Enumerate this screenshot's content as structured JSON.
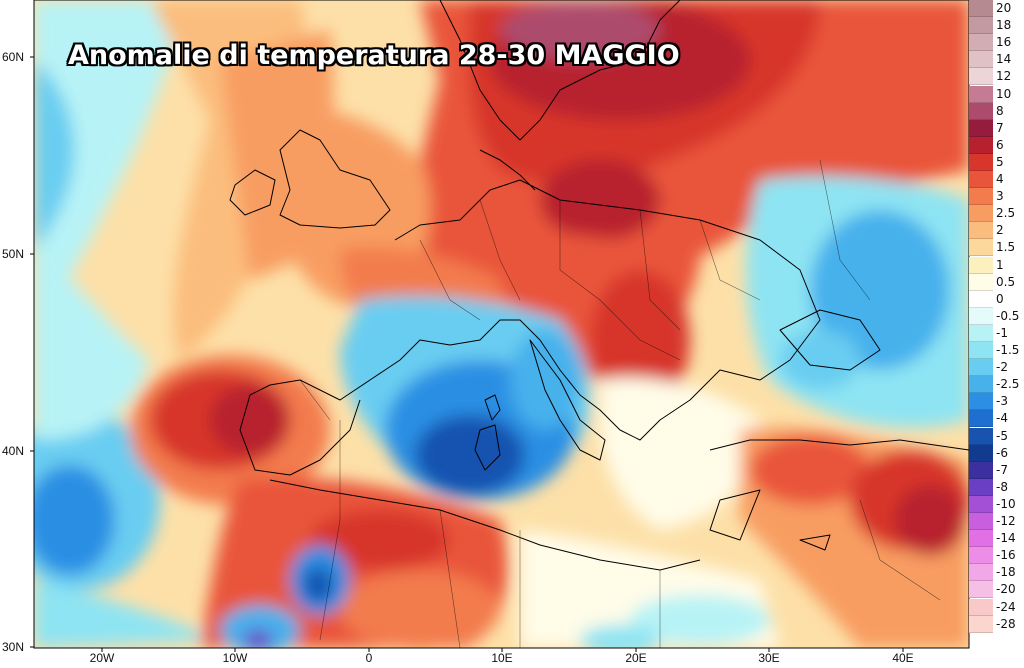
{
  "title": "Anomalie di temperatura 28-30 MAGGIO",
  "lat_labels": [
    "60N",
    "50N",
    "40N",
    "30N"
  ],
  "lon_labels": [
    "20W",
    "10W",
    "0",
    "10E",
    "20E",
    "30E",
    "40E"
  ],
  "legend": [
    {
      "label": "20",
      "color": "#b58a91"
    },
    {
      "label": "18",
      "color": "#c49aa2"
    },
    {
      "label": "16",
      "color": "#d2adb4"
    },
    {
      "label": "14",
      "color": "#dfc1c6"
    },
    {
      "label": "12",
      "color": "#ebd5d8"
    },
    {
      "label": "10",
      "color": "#c47b93"
    },
    {
      "label": "8",
      "color": "#ad4b6d"
    },
    {
      "label": "7",
      "color": "#951c3c"
    },
    {
      "label": "6",
      "color": "#b7202f"
    },
    {
      "label": "5",
      "color": "#d7362c"
    },
    {
      "label": "4",
      "color": "#e9553a"
    },
    {
      "label": "3",
      "color": "#f37c4e"
    },
    {
      "label": "2.5",
      "color": "#f89d62"
    },
    {
      "label": "2",
      "color": "#fbbd7d"
    },
    {
      "label": "1.5",
      "color": "#fdd89c"
    },
    {
      "label": "1",
      "color": "#fdf0bf"
    },
    {
      "label": "0.5",
      "color": "#fffce8"
    },
    {
      "label": "0",
      "color": "#ffffff"
    },
    {
      "label": "-0.5",
      "color": "#e3fbfb"
    },
    {
      "label": "-1",
      "color": "#b7f3f6"
    },
    {
      "label": "-1.5",
      "color": "#8ee4f3"
    },
    {
      "label": "-2",
      "color": "#69cdf1"
    },
    {
      "label": "-2.5",
      "color": "#47b1ec"
    },
    {
      "label": "-3",
      "color": "#2c8fe3"
    },
    {
      "label": "-4",
      "color": "#1f6fd0"
    },
    {
      "label": "-5",
      "color": "#1853b0"
    },
    {
      "label": "-6",
      "color": "#113b8e"
    },
    {
      "label": "-7",
      "color": "#3c2fa0"
    },
    {
      "label": "-8",
      "color": "#6b3fc4"
    },
    {
      "label": "-10",
      "color": "#a450d6"
    },
    {
      "label": "-12",
      "color": "#c85fde"
    },
    {
      "label": "-14",
      "color": "#e070e4"
    },
    {
      "label": "-16",
      "color": "#ec8de8"
    },
    {
      "label": "-18",
      "color": "#f2a7e9"
    },
    {
      "label": "-20",
      "color": "#f6c0e6"
    },
    {
      "label": "-24",
      "color": "#f9c9c9"
    },
    {
      "label": "-28",
      "color": "#fbd6cf"
    }
  ]
}
